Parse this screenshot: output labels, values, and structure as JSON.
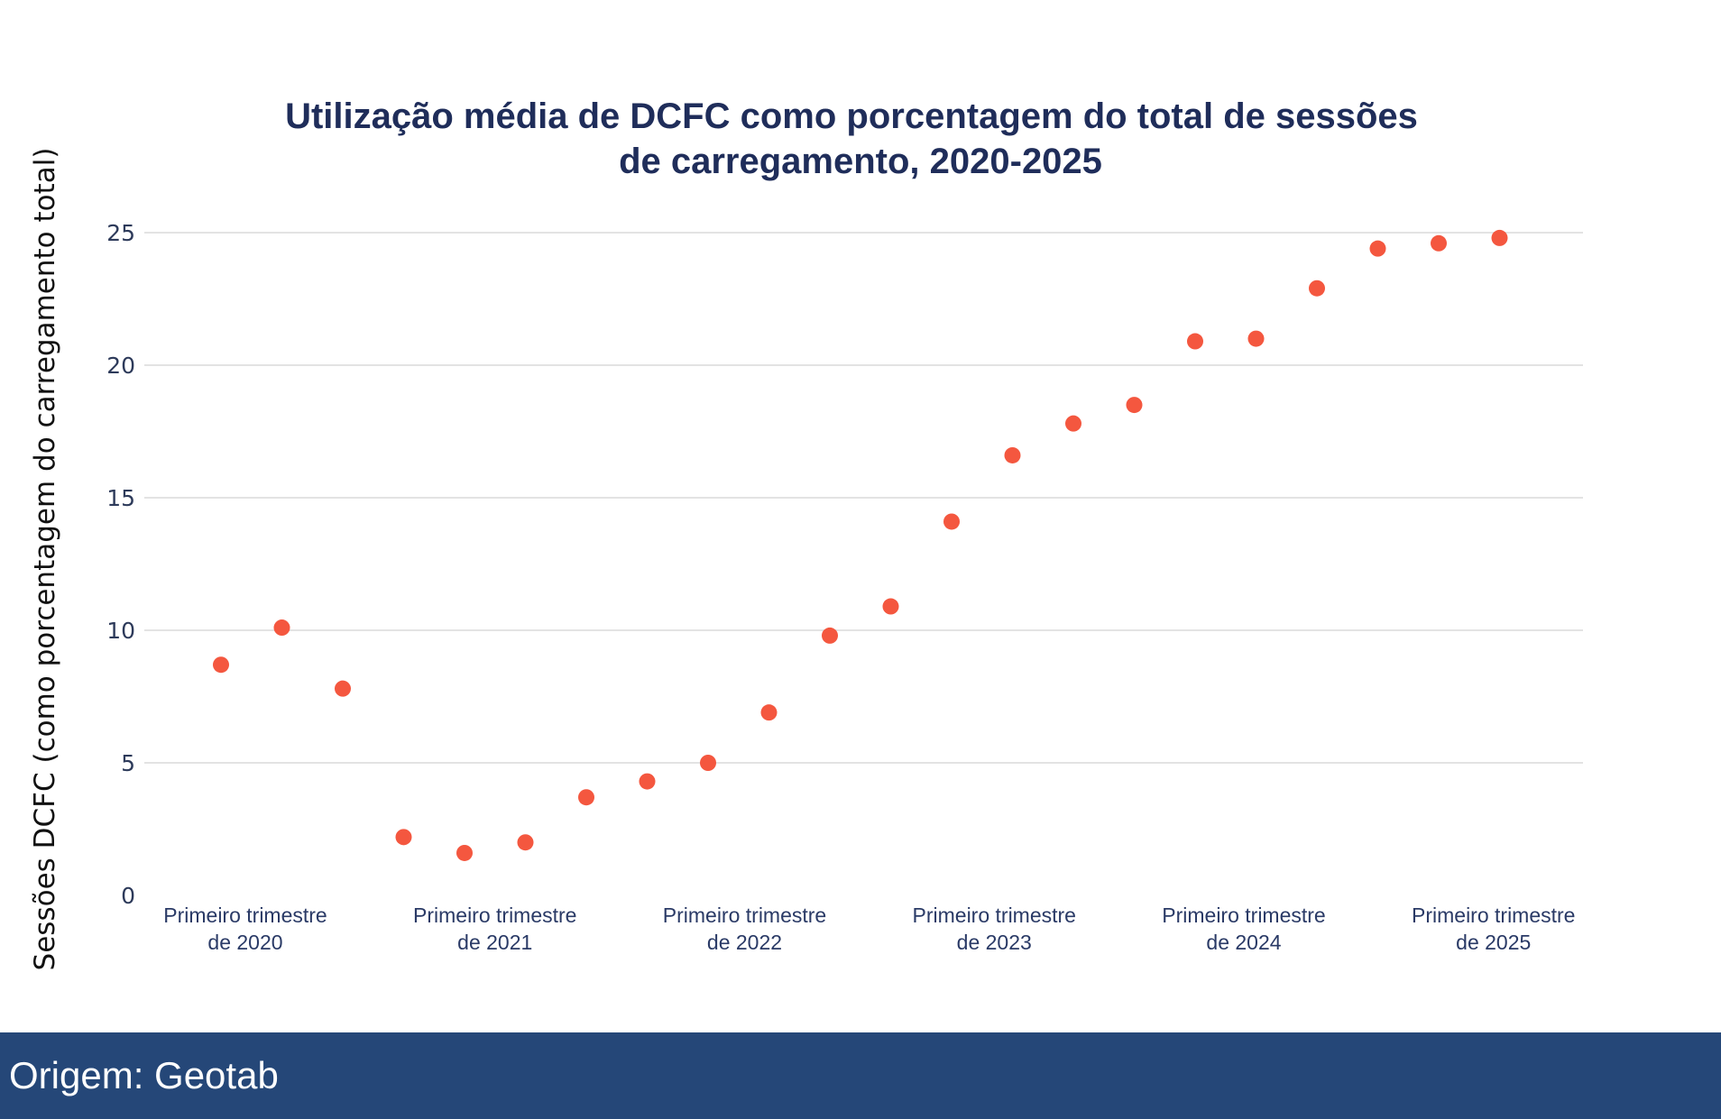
{
  "chart_data": {
    "type": "scatter",
    "title_lines": [
      "Utilização média de DCFC como porcentagem do total de sessões",
      "de carregamento, 2020-2025"
    ],
    "ylabel": "Sessões DCFC (como porcentagem do carregamento total)",
    "xlabel": "",
    "ylim": [
      0,
      25
    ],
    "yticks": [
      0,
      5,
      10,
      15,
      20,
      25
    ],
    "grid": true,
    "x_ticks": [
      {
        "index": 0.4,
        "line1": "Primeiro trimestre",
        "line2": "de 2020"
      },
      {
        "index": 4.5,
        "line1": "Primeiro trimestre",
        "line2": "de 2021"
      },
      {
        "index": 8.6,
        "line1": "Primeiro trimestre",
        "line2": "de 2022"
      },
      {
        "index": 12.7,
        "line1": "Primeiro trimestre",
        "line2": "de 2023"
      },
      {
        "index": 16.8,
        "line1": "Primeiro trimestre",
        "line2": "de 2024"
      },
      {
        "index": 20.9,
        "line1": "Primeiro trimestre",
        "line2": "de 2025"
      }
    ],
    "series": [
      {
        "name": "DCFC",
        "color": "#f4573f",
        "values": [
          8.7,
          10.1,
          7.8,
          2.2,
          1.6,
          2.0,
          3.7,
          4.3,
          5.0,
          6.9,
          9.8,
          10.9,
          14.1,
          16.6,
          17.8,
          18.5,
          20.9,
          21.0,
          22.9,
          24.4,
          24.6,
          24.8
        ]
      }
    ]
  },
  "footer": {
    "source": "Origem: Geotab"
  }
}
